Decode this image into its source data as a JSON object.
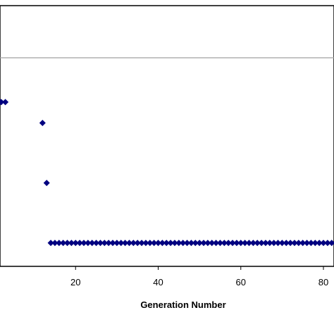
{
  "chart_data": {
    "type": "scatter",
    "title": "",
    "xlabel": "Generation Number",
    "ylabel": "",
    "xlim": [
      0,
      85
    ],
    "ylim": [
      0,
      1
    ],
    "x_ticks": [
      20,
      40,
      60,
      80
    ],
    "x_tick_labels": [
      "20",
      "40",
      "60",
      "80"
    ],
    "grid": false,
    "reference_line_y": 0.8,
    "marker": "diamond",
    "colors": {
      "marker": "#000080",
      "reference_line": "#a0a0a0",
      "axis": "#000000"
    },
    "series": [
      {
        "x": [
          1,
          2,
          3,
          12,
          13,
          14,
          15,
          16,
          17,
          18,
          19,
          20,
          21,
          22,
          23,
          24,
          25,
          26,
          27,
          28,
          29,
          30,
          31,
          32,
          33,
          34,
          35,
          36,
          37,
          38,
          39,
          40,
          41,
          42,
          43,
          44,
          45,
          46,
          47,
          48,
          49,
          50,
          51,
          52,
          53,
          54,
          55,
          56,
          57,
          58,
          59,
          60,
          61,
          62,
          63,
          64,
          65,
          66,
          67,
          68,
          69,
          70,
          71,
          72,
          73,
          74,
          75,
          76,
          77,
          78,
          79,
          80,
          81,
          82,
          83,
          84,
          85
        ],
        "y": [
          0.63,
          0.63,
          0.63,
          0.55,
          0.32,
          0.09,
          0.09,
          0.09,
          0.09,
          0.09,
          0.09,
          0.09,
          0.09,
          0.09,
          0.09,
          0.09,
          0.09,
          0.09,
          0.09,
          0.09,
          0.09,
          0.09,
          0.09,
          0.09,
          0.09,
          0.09,
          0.09,
          0.09,
          0.09,
          0.09,
          0.09,
          0.09,
          0.09,
          0.09,
          0.09,
          0.09,
          0.09,
          0.09,
          0.09,
          0.09,
          0.09,
          0.09,
          0.09,
          0.09,
          0.09,
          0.09,
          0.09,
          0.09,
          0.09,
          0.09,
          0.09,
          0.09,
          0.09,
          0.09,
          0.09,
          0.09,
          0.09,
          0.09,
          0.09,
          0.09,
          0.09,
          0.09,
          0.09,
          0.09,
          0.09,
          0.09,
          0.09,
          0.09,
          0.09,
          0.09,
          0.09,
          0.09,
          0.09,
          0.09,
          0.09,
          0.09,
          0.09
        ]
      }
    ]
  }
}
